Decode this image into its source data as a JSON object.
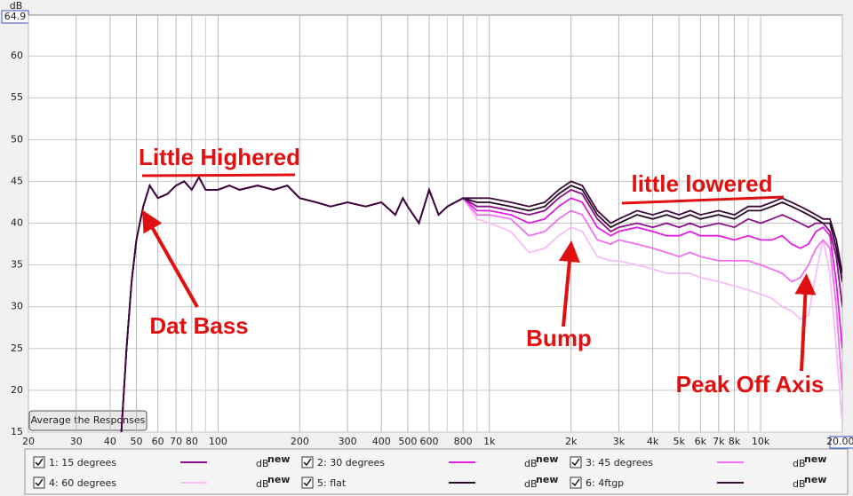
{
  "chart_data": {
    "type": "line",
    "y_label": "dB",
    "log_x": true,
    "grid": true,
    "xlim": [
      20,
      20000
    ],
    "ylim": [
      15,
      64.9
    ],
    "xticks": [
      20,
      30,
      40,
      50,
      60,
      70,
      80,
      100,
      200,
      300,
      400,
      500,
      600,
      800,
      {
        "value": 1000,
        "label": "1k"
      },
      {
        "value": 2000,
        "label": "2k"
      },
      {
        "value": 3000,
        "label": "3k"
      },
      {
        "value": 4000,
        "label": "4k"
      },
      {
        "value": 5000,
        "label": "5k"
      },
      {
        "value": 6000,
        "label": "6k"
      },
      {
        "value": 7000,
        "label": "7k"
      },
      {
        "value": 8000,
        "label": "8k"
      },
      {
        "value": 10000,
        "label": "10k"
      },
      {
        "value": 20000,
        "label": "20.00k"
      }
    ],
    "x_minor_grid": [
      90,
      700,
      900,
      9000
    ],
    "yticks": [
      15,
      20,
      25,
      30,
      35,
      40,
      45,
      50,
      55,
      60
    ],
    "x": [
      44,
      46,
      48,
      50,
      53,
      56,
      60,
      65,
      70,
      75,
      80,
      85,
      90,
      100,
      110,
      120,
      140,
      160,
      180,
      200,
      230,
      260,
      300,
      350,
      400,
      450,
      480,
      500,
      550,
      600,
      650,
      700,
      800,
      900,
      1000,
      1200,
      1400,
      1600,
      1800,
      2000,
      2200,
      2500,
      2800,
      3000,
      3500,
      4000,
      4500,
      5000,
      5500,
      6000,
      7000,
      8000,
      9000,
      10000,
      11000,
      12000,
      13000,
      14000,
      15000,
      16000,
      17000,
      18000,
      19000,
      20000
    ],
    "series": [
      {
        "name": "1: 15 degrees",
        "color": "#8a108a",
        "values": [
          15,
          25,
          33,
          38,
          42,
          44.5,
          43,
          43.5,
          44.5,
          45,
          44,
          45.5,
          44,
          44,
          44.5,
          44,
          44.5,
          44,
          44.5,
          43,
          42.5,
          42,
          42.5,
          42,
          42.5,
          41,
          43,
          42,
          40,
          44,
          41,
          42,
          43,
          42,
          42,
          41.5,
          41,
          41.5,
          43,
          44,
          43.5,
          40.5,
          39,
          39.5,
          40,
          39.5,
          40,
          39.5,
          40,
          39.5,
          40,
          39.5,
          40.5,
          40,
          40.5,
          41,
          40.5,
          40,
          39.5,
          40,
          40,
          39,
          36,
          30
        ]
      },
      {
        "name": "2: 30 degrees",
        "color": "#e020e0",
        "values": [
          15,
          25,
          33,
          38,
          42,
          44.5,
          43,
          43.5,
          44.5,
          45,
          44,
          45.5,
          44,
          44,
          44.5,
          44,
          44.5,
          44,
          44.5,
          43,
          42.5,
          42,
          42.5,
          42,
          42.5,
          41,
          43,
          42,
          40,
          44,
          41,
          42,
          43,
          41.5,
          41.5,
          41,
          40,
          40.5,
          42,
          43,
          42.5,
          39.5,
          38.5,
          39,
          39.5,
          39,
          38.5,
          38.5,
          39,
          38.5,
          38.5,
          38,
          38.5,
          38,
          38,
          38.5,
          37.5,
          37,
          37.5,
          39,
          39.5,
          38.5,
          33,
          25
        ]
      },
      {
        "name": "3: 45 degrees",
        "color": "#f070f0",
        "values": [
          15,
          25,
          33,
          38,
          42,
          44.5,
          43,
          43.5,
          44.5,
          45,
          44,
          45.5,
          44,
          44,
          44.5,
          44,
          44.5,
          44,
          44.5,
          43,
          42.5,
          42,
          42.5,
          42,
          42.5,
          41,
          43,
          42,
          40,
          44,
          41,
          42,
          43,
          41,
          41,
          40.5,
          38.5,
          39,
          40.5,
          41.5,
          41,
          38,
          37.5,
          38,
          37.5,
          37,
          36.5,
          36,
          36.5,
          36,
          35.5,
          35.5,
          35.5,
          35,
          34.5,
          34,
          33,
          33.5,
          35,
          37,
          38,
          37,
          30,
          20
        ]
      },
      {
        "name": "4: 60 degrees",
        "color": "#f8bcf8",
        "values": [
          15,
          25,
          33,
          38,
          42,
          44.5,
          43,
          43.5,
          44.5,
          45,
          44,
          45.5,
          44,
          44,
          44.5,
          44,
          44.5,
          44,
          44.5,
          43,
          42.5,
          42,
          42.5,
          42,
          42.5,
          41,
          43,
          42,
          40,
          44,
          41,
          42,
          43,
          40.5,
          40,
          39,
          36.5,
          37,
          38.5,
          39.5,
          39,
          36,
          35.5,
          35.5,
          35,
          34.5,
          34,
          34,
          34,
          33.5,
          33,
          32.5,
          32,
          31.5,
          31,
          30,
          29.5,
          28.5,
          29,
          34,
          38,
          34,
          25,
          16
        ]
      },
      {
        "name": "5: flat",
        "color": "#2a0828",
        "values": [
          15,
          25,
          33,
          38,
          42,
          44.5,
          43,
          43.5,
          44.5,
          45,
          44,
          45.5,
          44,
          44,
          44.5,
          44,
          44.5,
          44,
          44.5,
          43,
          42.5,
          42,
          42.5,
          42,
          42.5,
          41,
          43,
          42,
          40,
          44,
          41,
          42,
          43,
          42.5,
          42.5,
          42,
          41.5,
          42,
          43.5,
          44.5,
          44,
          41,
          39.5,
          40,
          41,
          40.5,
          41,
          40.5,
          41,
          40.5,
          41,
          40.5,
          41.5,
          41.5,
          42,
          42.5,
          42,
          41.5,
          41,
          40.5,
          40,
          40,
          37,
          33
        ]
      },
      {
        "name": "6: 4ftgp",
        "color": "#3c0a3a",
        "values": [
          15,
          25,
          33,
          38,
          42,
          44.5,
          43,
          43.5,
          44.5,
          45,
          44,
          45.5,
          44,
          44,
          44.5,
          44,
          44.5,
          44,
          44.5,
          43,
          42.5,
          42,
          42.5,
          42,
          42.5,
          41,
          43,
          42,
          40,
          44,
          41,
          42,
          43,
          43,
          43,
          42.5,
          42,
          42.5,
          44,
          45,
          44.5,
          41.5,
          40,
          40.5,
          41.5,
          41,
          41.5,
          41,
          41.5,
          41,
          41.5,
          41,
          42,
          42,
          42.5,
          43,
          42.5,
          42,
          41.5,
          41,
          40.5,
          40.5,
          38,
          34
        ]
      }
    ],
    "legend_unit": "dB",
    "legend_unit_sup": "new",
    "annotations": [
      "Little Highered",
      "little lowered",
      "Dat Bass",
      "Bump",
      "Peak Off Axis"
    ]
  },
  "controls": {
    "button": "Average the Responses"
  }
}
